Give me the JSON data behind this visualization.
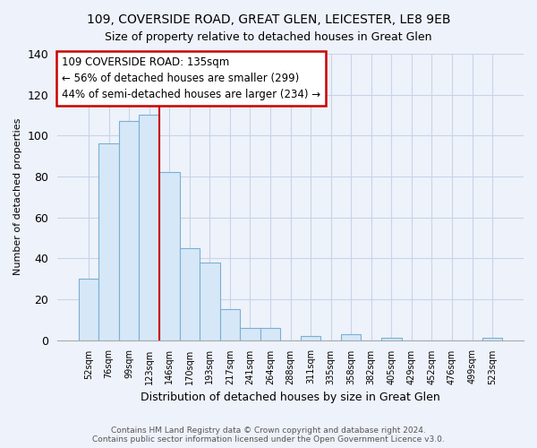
{
  "title1": "109, COVERSIDE ROAD, GREAT GLEN, LEICESTER, LE8 9EB",
  "title2": "Size of property relative to detached houses in Great Glen",
  "xlabel": "Distribution of detached houses by size in Great Glen",
  "ylabel": "Number of detached properties",
  "bar_labels": [
    "52sqm",
    "76sqm",
    "99sqm",
    "123sqm",
    "146sqm",
    "170sqm",
    "193sqm",
    "217sqm",
    "241sqm",
    "264sqm",
    "288sqm",
    "311sqm",
    "335sqm",
    "358sqm",
    "382sqm",
    "405sqm",
    "429sqm",
    "452sqm",
    "476sqm",
    "499sqm",
    "523sqm"
  ],
  "bar_values": [
    30,
    96,
    107,
    110,
    82,
    45,
    38,
    15,
    6,
    6,
    0,
    2,
    0,
    3,
    0,
    1,
    0,
    0,
    0,
    0,
    1
  ],
  "bar_color": "#d6e8f7",
  "bar_edge_color": "#7aafd4",
  "vline_color": "#cc0000",
  "ylim": [
    0,
    140
  ],
  "yticks": [
    0,
    20,
    40,
    60,
    80,
    100,
    120,
    140
  ],
  "annotation_line1": "109 COVERSIDE ROAD: 135sqm",
  "annotation_line2": "← 56% of detached houses are smaller (299)",
  "annotation_line3": "44% of semi-detached houses are larger (234) →",
  "annotation_box_color": "#ffffff",
  "annotation_box_edge": "#cc0000",
  "footer1": "Contains HM Land Registry data © Crown copyright and database right 2024.",
  "footer2": "Contains public sector information licensed under the Open Government Licence v3.0.",
  "bg_color": "#eef2fa",
  "grid_color": "#c8d4e8"
}
